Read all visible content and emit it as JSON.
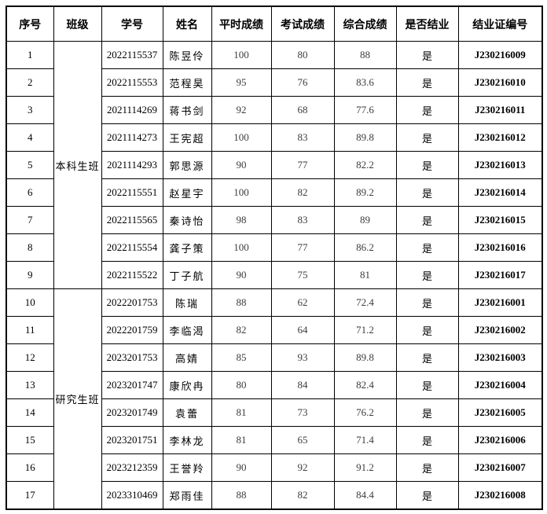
{
  "table": {
    "headers": [
      "序号",
      "班级",
      "学号",
      "姓名",
      "平时成绩",
      "考试成绩",
      "综合成绩",
      "是否结业",
      "结业证编号"
    ],
    "groups": [
      {
        "class_label": "本科生班",
        "rows": [
          {
            "no": "1",
            "student_id": "2022115537",
            "name": "陈昱伶",
            "regular_score": "100",
            "exam_score": "80",
            "overall_score": "88",
            "completed": "是",
            "certificate_no": "J230216009"
          },
          {
            "no": "2",
            "student_id": "2022115553",
            "name": "范程昊",
            "regular_score": "95",
            "exam_score": "76",
            "overall_score": "83.6",
            "completed": "是",
            "certificate_no": "J230216010"
          },
          {
            "no": "3",
            "student_id": "2021114269",
            "name": "蒋书剑",
            "regular_score": "92",
            "exam_score": "68",
            "overall_score": "77.6",
            "completed": "是",
            "certificate_no": "J230216011"
          },
          {
            "no": "4",
            "student_id": "2021114273",
            "name": "王宪超",
            "regular_score": "100",
            "exam_score": "83",
            "overall_score": "89.8",
            "completed": "是",
            "certificate_no": "J230216012"
          },
          {
            "no": "5",
            "student_id": "2021114293",
            "name": "郭思源",
            "regular_score": "90",
            "exam_score": "77",
            "overall_score": "82.2",
            "completed": "是",
            "certificate_no": "J230216013"
          },
          {
            "no": "6",
            "student_id": "2022115551",
            "name": "赵星宇",
            "regular_score": "100",
            "exam_score": "82",
            "overall_score": "89.2",
            "completed": "是",
            "certificate_no": "J230216014"
          },
          {
            "no": "7",
            "student_id": "2022115565",
            "name": "秦诗怡",
            "regular_score": "98",
            "exam_score": "83",
            "overall_score": "89",
            "completed": "是",
            "certificate_no": "J230216015"
          },
          {
            "no": "8",
            "student_id": "2022115554",
            "name": "龚子策",
            "regular_score": "100",
            "exam_score": "77",
            "overall_score": "86.2",
            "completed": "是",
            "certificate_no": "J230216016"
          },
          {
            "no": "9",
            "student_id": "2022115522",
            "name": "丁子航",
            "regular_score": "90",
            "exam_score": "75",
            "overall_score": "81",
            "completed": "是",
            "certificate_no": "J230216017"
          }
        ]
      },
      {
        "class_label": "研究生班",
        "rows": [
          {
            "no": "10",
            "student_id": "2022201753",
            "name": "陈瑞",
            "regular_score": "88",
            "exam_score": "62",
            "overall_score": "72.4",
            "completed": "是",
            "certificate_no": "J230216001"
          },
          {
            "no": "11",
            "student_id": "2022201759",
            "name": "李临渴",
            "regular_score": "82",
            "exam_score": "64",
            "overall_score": "71.2",
            "completed": "是",
            "certificate_no": "J230216002"
          },
          {
            "no": "12",
            "student_id": "2023201753",
            "name": "高婧",
            "regular_score": "85",
            "exam_score": "93",
            "overall_score": "89.8",
            "completed": "是",
            "certificate_no": "J230216003"
          },
          {
            "no": "13",
            "student_id": "2023201747",
            "name": "康欣冉",
            "regular_score": "80",
            "exam_score": "84",
            "overall_score": "82.4",
            "completed": "是",
            "certificate_no": "J230216004"
          },
          {
            "no": "14",
            "student_id": "2023201749",
            "name": "袁蕾",
            "regular_score": "81",
            "exam_score": "73",
            "overall_score": "76.2",
            "completed": "是",
            "certificate_no": "J230216005"
          },
          {
            "no": "15",
            "student_id": "2023201751",
            "name": "李林龙",
            "regular_score": "81",
            "exam_score": "65",
            "overall_score": "71.4",
            "completed": "是",
            "certificate_no": "J230216006"
          },
          {
            "no": "16",
            "student_id": "2023212359",
            "name": "王誉羚",
            "regular_score": "90",
            "exam_score": "92",
            "overall_score": "91.2",
            "completed": "是",
            "certificate_no": "J230216007"
          },
          {
            "no": "17",
            "student_id": "2023310469",
            "name": "郑雨佳",
            "regular_score": "88",
            "exam_score": "82",
            "overall_score": "84.4",
            "completed": "是",
            "certificate_no": "J230216008"
          }
        ]
      }
    ]
  }
}
